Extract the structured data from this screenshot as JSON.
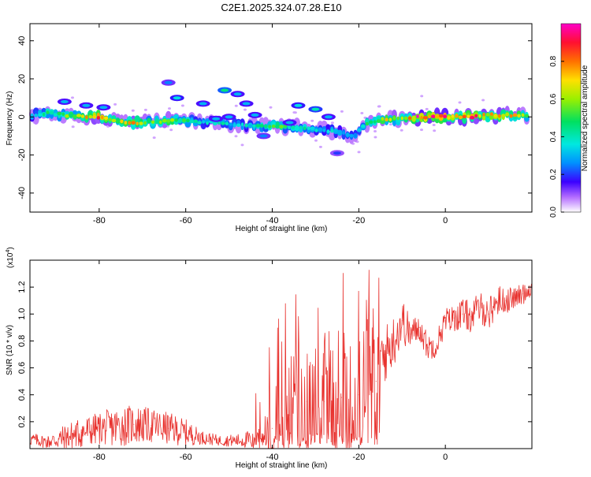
{
  "title": "C2E1.2025.324.07.28.E10",
  "chart_data": [
    {
      "type": "heatmap",
      "name": "spectrogram",
      "xlabel": "Height of straight line (km)",
      "ylabel": "Frequency (Hz)",
      "xlim": [
        -96,
        20
      ],
      "ylim": [
        -50,
        49
      ],
      "xticks": [
        -80,
        -60,
        -40,
        -20,
        0
      ],
      "yticks": [
        -40,
        -20,
        0,
        20,
        40
      ],
      "colorbar": {
        "label": "Normalized spectral amplitude",
        "range": [
          0,
          1
        ],
        "ticks": [
          0.0,
          0.2,
          0.4,
          0.6,
          0.8
        ]
      },
      "ridge": [
        {
          "x": -95,
          "f": 1,
          "a": 0.35
        },
        {
          "x": -92,
          "f": 2,
          "a": 0.45
        },
        {
          "x": -88,
          "f": 1,
          "a": 0.55
        },
        {
          "x": -84,
          "f": 0,
          "a": 0.65
        },
        {
          "x": -80,
          "f": 0,
          "a": 0.9
        },
        {
          "x": -76,
          "f": -2,
          "a": 0.6
        },
        {
          "x": -72,
          "f": -3,
          "a": 0.75
        },
        {
          "x": -68,
          "f": -3,
          "a": 0.55
        },
        {
          "x": -64,
          "f": -2,
          "a": 0.6
        },
        {
          "x": -60,
          "f": -2,
          "a": 0.5
        },
        {
          "x": -56,
          "f": -3,
          "a": 0.35
        },
        {
          "x": -52,
          "f": -3,
          "a": 0.4
        },
        {
          "x": -48,
          "f": -4,
          "a": 0.35
        },
        {
          "x": -44,
          "f": -5,
          "a": 0.4
        },
        {
          "x": -40,
          "f": -5,
          "a": 0.55
        },
        {
          "x": -36,
          "f": -5,
          "a": 0.5
        },
        {
          "x": -32,
          "f": -6,
          "a": 0.4
        },
        {
          "x": -28,
          "f": -7,
          "a": 0.35
        },
        {
          "x": -24,
          "f": -8,
          "a": 0.35
        },
        {
          "x": -21,
          "f": -10,
          "a": 0.3
        },
        {
          "x": -18,
          "f": -3,
          "a": 0.5
        },
        {
          "x": -14,
          "f": -1,
          "a": 0.7
        },
        {
          "x": -10,
          "f": -1,
          "a": 0.6
        },
        {
          "x": -6,
          "f": 0,
          "a": 0.95
        },
        {
          "x": -2,
          "f": 0,
          "a": 0.98
        },
        {
          "x": 2,
          "f": 0,
          "a": 0.75
        },
        {
          "x": 6,
          "f": 0,
          "a": 0.9
        },
        {
          "x": 10,
          "f": 1,
          "a": 0.7
        },
        {
          "x": 14,
          "f": 1,
          "a": 0.8
        },
        {
          "x": 18,
          "f": 1,
          "a": 0.6
        }
      ],
      "features": [
        {
          "x": -64,
          "f": 18,
          "a": 0.25
        },
        {
          "x": -62,
          "f": 10,
          "a": 0.35
        },
        {
          "x": -56,
          "f": 7,
          "a": 0.3
        },
        {
          "x": -51,
          "f": 14,
          "a": 0.45
        },
        {
          "x": -48,
          "f": 12,
          "a": 0.3
        },
        {
          "x": -46,
          "f": 7,
          "a": 0.3
        },
        {
          "x": -50,
          "f": 0,
          "a": 0.3
        },
        {
          "x": -44,
          "f": 1,
          "a": 0.3
        },
        {
          "x": -34,
          "f": 6,
          "a": 0.35
        },
        {
          "x": -30,
          "f": 4,
          "a": 0.4
        },
        {
          "x": -27,
          "f": 0,
          "a": 0.3
        },
        {
          "x": -25,
          "f": -19,
          "a": 0.2
        },
        {
          "x": -88,
          "f": 8,
          "a": 0.3
        },
        {
          "x": -83,
          "f": 6,
          "a": 0.3
        },
        {
          "x": -42,
          "f": -10,
          "a": 0.25
        },
        {
          "x": -36,
          "f": -3,
          "a": 0.3
        },
        {
          "x": -53,
          "f": -1,
          "a": 0.3
        },
        {
          "x": -79,
          "f": 5,
          "a": 0.3
        }
      ]
    },
    {
      "type": "line",
      "name": "snr",
      "xlabel": "Height of straight line (km)",
      "ylabel": "SNR (10 * v/v)",
      "multiplier": "(x10",
      "multiplier_exp": "4",
      "color": "#e8322e",
      "xlim": [
        -96,
        20
      ],
      "ylim": [
        0,
        1.4
      ],
      "xticks": [
        -80,
        -60,
        -40,
        -20,
        0
      ],
      "yticks": [
        0.2,
        0.4,
        0.6,
        0.8,
        1.0,
        1.2
      ],
      "x": [
        -96,
        -92,
        -88,
        -84,
        -80,
        -76,
        -72,
        -68,
        -64,
        -60,
        -56,
        -52,
        -48,
        -44,
        -40,
        -36,
        -32,
        -28,
        -24,
        -20,
        -16,
        -14,
        -12,
        -10,
        -8,
        -6,
        -4,
        -2,
        0,
        2,
        4,
        6,
        8,
        10,
        12,
        14,
        16,
        18,
        20
      ],
      "y": [
        0.07,
        0.05,
        0.08,
        0.12,
        0.15,
        0.16,
        0.18,
        0.17,
        0.15,
        0.12,
        0.08,
        0.06,
        0.06,
        0.07,
        0.15,
        0.25,
        0.35,
        0.35,
        0.38,
        0.4,
        0.5,
        0.7,
        0.8,
        0.95,
        0.85,
        0.9,
        0.75,
        0.78,
        0.95,
        0.97,
        1.0,
        0.98,
        1.05,
        1.0,
        1.1,
        1.1,
        1.12,
        1.15,
        1.2
      ],
      "noise": [
        0.05,
        0.05,
        0.1,
        0.12,
        0.12,
        0.15,
        0.15,
        0.13,
        0.12,
        0.1,
        0.05,
        0.04,
        0.05,
        0.08,
        0.35,
        0.45,
        0.45,
        0.45,
        0.45,
        0.45,
        0.45,
        0.22,
        0.2,
        0.18,
        0.12,
        0.1,
        0.1,
        0.1,
        0.1,
        0.1,
        0.12,
        0.12,
        0.12,
        0.12,
        0.12,
        0.1,
        0.08,
        0.08,
        0.06
      ]
    }
  ]
}
